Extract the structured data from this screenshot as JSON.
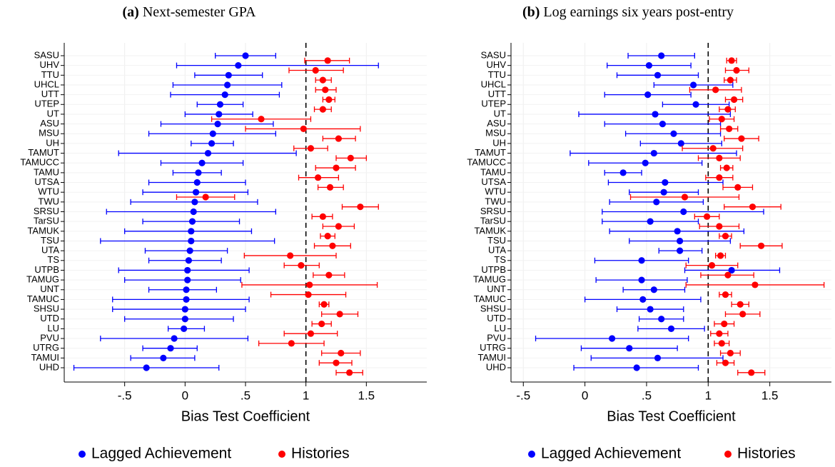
{
  "chart_data": [
    {
      "type": "dot",
      "panel_label": "(a)",
      "title": "Next-semester GPA",
      "x_label": "Bias Test Coefficient",
      "categories": [
        "SASU",
        "UHV",
        "TTU",
        "UHCL",
        "UTT",
        "UTEP",
        "UT",
        "ASU",
        "MSU",
        "UH",
        "TAMUT",
        "TAMUCC",
        "TAMU",
        "UTSA",
        "WTU",
        "TWU",
        "SRSU",
        "TarSU",
        "TAMUK",
        "TSU",
        "UTA",
        "TS",
        "UTPB",
        "TAMUG",
        "UNT",
        "TAMUC",
        "SHSU",
        "UTD",
        "LU",
        "PVU",
        "UTRG",
        "TAMUI",
        "UHD"
      ],
      "series": [
        {
          "name": "Lagged Achievement",
          "color": "#0000ff",
          "values": [
            0.5,
            0.44,
            0.36,
            0.35,
            0.33,
            0.29,
            0.28,
            0.27,
            0.23,
            0.22,
            0.19,
            0.14,
            0.11,
            0.1,
            0.09,
            0.08,
            0.07,
            0.06,
            0.05,
            0.05,
            0.04,
            0.03,
            0.02,
            0.02,
            0.01,
            0.01,
            0.0,
            0.0,
            -0.01,
            -0.09,
            -0.12,
            -0.18,
            -0.32
          ],
          "lower": [
            0.25,
            -0.07,
            0.08,
            -0.1,
            -0.12,
            0.1,
            0.0,
            -0.2,
            -0.3,
            0.05,
            -0.55,
            -0.2,
            -0.1,
            -0.3,
            -0.35,
            -0.45,
            -0.65,
            -0.35,
            -0.5,
            -0.7,
            -0.33,
            -0.3,
            -0.55,
            -0.5,
            -0.3,
            -0.6,
            -0.6,
            -0.5,
            -0.14,
            -0.7,
            -0.35,
            -0.45,
            -0.92
          ],
          "upper": [
            0.75,
            1.6,
            0.64,
            0.8,
            0.78,
            0.48,
            0.56,
            0.73,
            0.75,
            0.4,
            0.92,
            0.48,
            0.3,
            0.5,
            0.52,
            0.6,
            0.75,
            0.45,
            0.55,
            0.74,
            0.35,
            0.3,
            0.53,
            0.46,
            0.26,
            0.53,
            0.5,
            0.4,
            0.16,
            0.52,
            0.1,
            0.08,
            0.28
          ]
        },
        {
          "name": "Histories",
          "color": "#ff0000",
          "values": [
            1.18,
            1.08,
            1.14,
            1.16,
            1.19,
            1.14,
            0.63,
            0.98,
            1.27,
            1.04,
            1.37,
            1.25,
            1.1,
            1.2,
            0.17,
            1.45,
            1.14,
            1.27,
            1.18,
            1.22,
            0.87,
            0.96,
            1.19,
            1.03,
            1.02,
            1.15,
            1.28,
            1.13,
            1.04,
            0.88,
            1.29,
            1.25,
            1.36
          ],
          "lower": [
            0.99,
            0.86,
            1.08,
            1.08,
            1.14,
            1.07,
            0.22,
            0.5,
            1.14,
            0.9,
            1.25,
            1.08,
            0.94,
            1.1,
            -0.07,
            1.3,
            1.05,
            1.14,
            1.12,
            1.07,
            0.49,
            0.82,
            1.06,
            0.47,
            0.71,
            1.11,
            1.13,
            1.05,
            0.82,
            0.61,
            1.13,
            1.11,
            1.25
          ],
          "upper": [
            1.36,
            1.31,
            1.21,
            1.25,
            1.24,
            1.21,
            1.04,
            1.45,
            1.41,
            1.18,
            1.5,
            1.41,
            1.27,
            1.31,
            0.41,
            1.6,
            1.22,
            1.4,
            1.24,
            1.37,
            1.25,
            1.11,
            1.32,
            1.59,
            1.33,
            1.19,
            1.43,
            1.21,
            1.26,
            1.15,
            1.45,
            1.38,
            1.47
          ]
        }
      ],
      "xlim": [
        -1,
        2
      ],
      "xticks": [
        {
          "value": -0.5,
          "label": "-.5"
        },
        0,
        {
          "value": 0.5,
          "label": ".5"
        },
        1,
        1.5
      ],
      "reference_line": 1,
      "grid": true,
      "legend": "bottom"
    },
    {
      "type": "dot",
      "panel_label": "(b)",
      "title": "Log earnings six years post-entry",
      "x_label": "Bias Test Coefficient",
      "categories": [
        "SASU",
        "UHV",
        "TTU",
        "UHCL",
        "UTT",
        "UTEP",
        "UT",
        "ASU",
        "MSU",
        "UH",
        "TAMUT",
        "TAMUCC",
        "TAMU",
        "UTSA",
        "WTU",
        "TWU",
        "SRSU",
        "TarSU",
        "TAMUK",
        "TSU",
        "UTA",
        "TS",
        "UTPB",
        "TAMUG",
        "UNT",
        "TAMUC",
        "SHSU",
        "UTD",
        "LU",
        "PVU",
        "UTRG",
        "TAMUI",
        "UHD"
      ],
      "series": [
        {
          "name": "Lagged Achievement",
          "color": "#0000ff",
          "values": [
            0.62,
            0.52,
            0.59,
            0.88,
            0.51,
            0.9,
            0.57,
            0.63,
            0.72,
            0.78,
            0.56,
            0.49,
            0.31,
            0.65,
            0.64,
            0.58,
            0.8,
            0.53,
            0.75,
            0.77,
            0.77,
            0.46,
            1.19,
            0.46,
            0.56,
            0.47,
            0.53,
            0.62,
            0.7,
            0.22,
            0.36,
            0.59,
            0.42
          ],
          "lower": [
            0.35,
            0.18,
            0.26,
            0.56,
            0.16,
            0.63,
            -0.05,
            0.16,
            0.33,
            0.45,
            -0.12,
            0.03,
            0.16,
            0.19,
            0.36,
            0.2,
            0.14,
            0.14,
            0.2,
            0.36,
            0.6,
            0.08,
            0.81,
            0.09,
            0.31,
            0.0,
            0.26,
            0.44,
            0.43,
            -0.4,
            -0.03,
            0.05,
            -0.09
          ],
          "upper": [
            0.89,
            0.86,
            0.92,
            1.2,
            0.86,
            1.17,
            1.18,
            1.1,
            1.1,
            1.11,
            1.23,
            0.95,
            0.46,
            1.12,
            0.92,
            0.96,
            1.45,
            0.92,
            1.29,
            1.18,
            0.95,
            0.84,
            1.58,
            0.83,
            0.81,
            0.94,
            0.8,
            0.8,
            0.97,
            0.84,
            0.75,
            1.12,
            0.92
          ]
        },
        {
          "name": "Histories",
          "color": "#ff0000",
          "values": [
            1.19,
            1.23,
            1.18,
            1.06,
            1.21,
            1.16,
            1.11,
            1.17,
            1.27,
            1.04,
            1.09,
            1.15,
            1.09,
            1.24,
            0.81,
            1.36,
            0.99,
            1.09,
            1.14,
            1.43,
            1.1,
            1.03,
            1.16,
            1.38,
            1.14,
            1.26,
            1.28,
            1.13,
            1.09,
            1.11,
            1.18,
            1.14,
            1.35
          ],
          "lower": [
            1.15,
            1.14,
            1.13,
            0.85,
            1.14,
            1.09,
            1.01,
            1.1,
            1.13,
            0.79,
            0.92,
            1.1,
            0.98,
            1.12,
            0.37,
            1.13,
            0.89,
            0.93,
            1.09,
            1.26,
            1.06,
            0.82,
            0.94,
            0.82,
            1.09,
            1.19,
            1.14,
            1.05,
            1.02,
            1.05,
            1.1,
            1.07,
            1.24
          ],
          "upper": [
            1.23,
            1.33,
            1.23,
            1.27,
            1.28,
            1.22,
            1.21,
            1.24,
            1.41,
            1.28,
            1.26,
            1.2,
            1.2,
            1.36,
            1.25,
            1.59,
            1.09,
            1.25,
            1.19,
            1.6,
            1.14,
            1.24,
            1.37,
            1.94,
            1.19,
            1.33,
            1.42,
            1.21,
            1.16,
            1.17,
            1.26,
            1.21,
            1.46
          ]
        }
      ],
      "xlim": [
        -0.6,
        2
      ],
      "xticks": [
        {
          "value": -0.5,
          "label": "-.5"
        },
        0,
        {
          "value": 0.5,
          "label": ".5"
        },
        1,
        1.5
      ],
      "reference_line": 1,
      "grid": true,
      "legend": "bottom"
    }
  ]
}
